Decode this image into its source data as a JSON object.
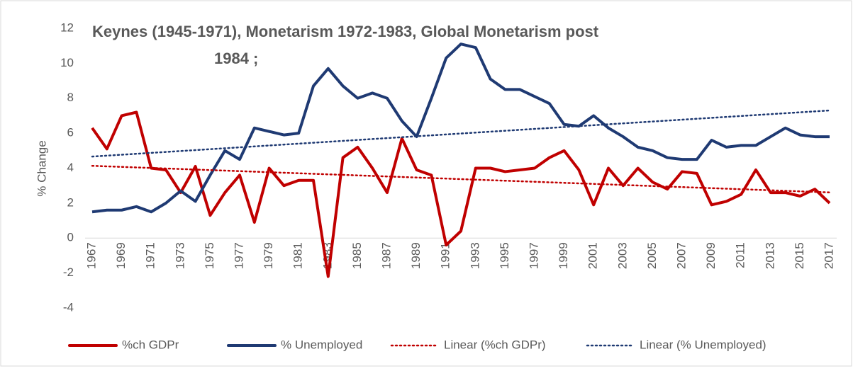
{
  "chart_data": {
    "type": "line",
    "title": [
      "Keynes (1945-1971), Monetarism 1972-1983, Global Monetarism post",
      "1984 ;"
    ],
    "y_label": "% Change",
    "categories": [
      1967,
      null,
      1969,
      null,
      1971,
      null,
      1973,
      null,
      1975,
      null,
      1977,
      null,
      1979,
      null,
      1981,
      null,
      1983,
      null,
      1985,
      null,
      1987,
      null,
      1989,
      null,
      1991,
      null,
      1993,
      null,
      1995,
      null,
      1997,
      null,
      1999,
      null,
      2001,
      null,
      2003,
      null,
      2005,
      null,
      2007,
      null,
      2009,
      null,
      2011,
      null,
      2013,
      null,
      2015,
      null,
      2017
    ],
    "series": [
      {
        "name": "%ch GDPr",
        "color": "#c00000",
        "values": [
          6.3,
          5.1,
          7.0,
          7.2,
          4.0,
          3.9,
          2.6,
          4.1,
          1.3,
          2.6,
          3.6,
          0.9,
          4.0,
          3.0,
          3.3,
          3.3,
          -2.2,
          4.6,
          5.2,
          4.0,
          2.6,
          5.7,
          3.9,
          3.6,
          -0.4,
          0.4,
          4.0,
          4.0,
          3.8,
          3.9,
          4.0,
          4.6,
          5.0,
          3.9,
          1.9,
          4.0,
          3.0,
          4.0,
          3.2,
          2.8,
          3.8,
          3.7,
          1.9,
          2.1,
          2.5,
          3.9,
          2.6,
          2.6,
          2.4,
          2.8,
          2.0
        ]
      },
      {
        "name": "% Unemployed",
        "color": "#1f3a73",
        "values": [
          1.5,
          1.6,
          1.6,
          1.8,
          1.5,
          2.0,
          2.7,
          2.1,
          3.6,
          5.0,
          4.5,
          6.3,
          6.1,
          5.9,
          6.0,
          8.7,
          9.7,
          8.7,
          8.0,
          8.3,
          8.0,
          6.7,
          5.8,
          8.0,
          10.3,
          11.1,
          10.9,
          9.1,
          8.5,
          8.5,
          8.1,
          7.7,
          6.5,
          6.4,
          7.0,
          6.3,
          5.8,
          5.2,
          5.0,
          4.6,
          4.5,
          4.5,
          5.6,
          5.2,
          5.3,
          5.3,
          5.8,
          6.3,
          5.9,
          5.8,
          5.8
        ]
      }
    ],
    "trendlines": [
      {
        "name": "Linear (%ch GDPr)",
        "series": 0,
        "color": "#c00000"
      },
      {
        "name": "Linear (% Unemployed)",
        "series": 1,
        "color": "#1f3a73"
      }
    ],
    "ylim": [
      -4,
      12
    ],
    "yticks": [
      -4,
      -2,
      0,
      2,
      4,
      6,
      8,
      10,
      12
    ],
    "grid": false
  }
}
